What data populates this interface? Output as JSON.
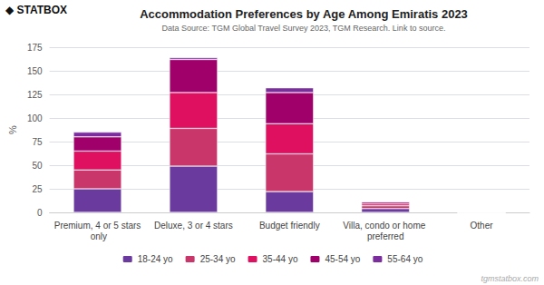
{
  "chart_data": {
    "type": "bar",
    "stacked": true,
    "title": "Accommodation Preferences by Age Among Emiratis 2023",
    "subtitle": "Data Source: TGM Global Travel Survey 2023, TGM Research. Link to source.",
    "logo_symbol": "◆",
    "logo": "STATBOX",
    "watermark": "tgmstatbox.com",
    "ylabel": "%",
    "categories": [
      "Premium, 4 or 5 stars only",
      "Deluxe, 3 or 4 stars",
      "Budget friendly",
      "Villa, condo or home preferred",
      "Other"
    ],
    "series": [
      {
        "name": "18-24 yo",
        "color": "#6b3a9e",
        "values": [
          25,
          49,
          22,
          4,
          0
        ]
      },
      {
        "name": "25-34 yo",
        "color": "#c9366a",
        "values": [
          20,
          40,
          40,
          3,
          0
        ]
      },
      {
        "name": "35-44 yo",
        "color": "#e01060",
        "values": [
          20,
          38,
          32,
          2,
          0
        ]
      },
      {
        "name": "45-54 yo",
        "color": "#a0006a",
        "values": [
          15,
          35,
          33,
          2,
          0
        ]
      },
      {
        "name": "55-64 yo",
        "color": "#7b2d9e",
        "values": [
          5,
          2,
          5,
          0,
          0
        ]
      }
    ],
    "ylim": [
      0,
      175
    ],
    "yticks": [
      0,
      25,
      50,
      75,
      100,
      125,
      150,
      175
    ],
    "grid": true,
    "legend": "bottom"
  }
}
